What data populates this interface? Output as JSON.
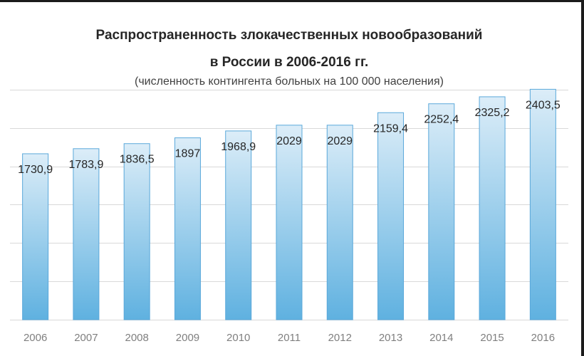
{
  "chart_data": {
    "type": "bar",
    "title_line1": "Распространенность злокачественных новообразований",
    "title_line2": "в России в 2006-2016 гг.",
    "subtitle": "(численность контингента больных на 100 000 населения)",
    "categories": [
      "2006",
      "2007",
      "2008",
      "2009",
      "2010",
      "2011",
      "2012",
      "2013",
      "2014",
      "2015",
      "2016"
    ],
    "values": [
      1730.9,
      1783.9,
      1836.5,
      1897,
      1968.9,
      2029,
      2029,
      2159.4,
      2252.4,
      2325.2,
      2403.5
    ],
    "value_labels": [
      "1730,9",
      "1783,9",
      "1836,5",
      "1897",
      "1968,9",
      "2029",
      "2029",
      "2159,4",
      "2252,4",
      "2325,2",
      "2403,5"
    ],
    "ylim": [
      0,
      2800
    ],
    "grid": true,
    "legend": false,
    "colors": {
      "bar_top": "#dcedf8",
      "bar_bottom": "#5fb1e0",
      "bar_edge": "#5aa8da",
      "grid": "#d9d9d9",
      "label": "#262626",
      "axis_text": "#7f7f7f"
    }
  }
}
